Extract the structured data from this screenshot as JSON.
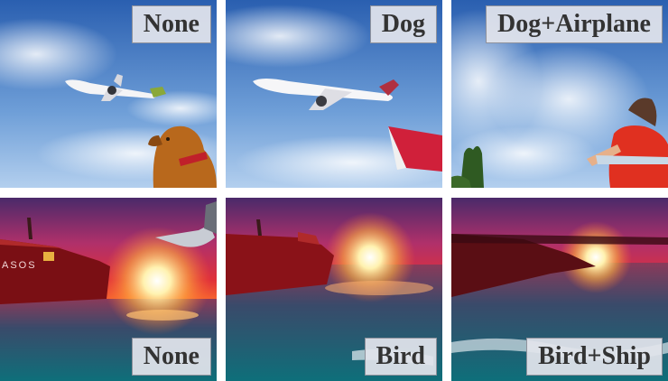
{
  "grid": {
    "rows": [
      {
        "scene": "sky-airplane",
        "tiles": [
          {
            "label": "None"
          },
          {
            "label": "Dog"
          },
          {
            "label": "Dog+Airplane"
          }
        ]
      },
      {
        "scene": "sunset-ship",
        "tiles": [
          {
            "label": "None"
          },
          {
            "label": "Bird"
          },
          {
            "label": "Bird+Ship"
          }
        ]
      }
    ]
  },
  "colors": {
    "sky_top": "#2d63b3",
    "sky_bottom": "#a9c9ea",
    "sunset_red": "#d8202a",
    "sunset_orange": "#ff9a2a",
    "sea": "#1c6e7a",
    "ship_hull": "#7a0f14"
  }
}
